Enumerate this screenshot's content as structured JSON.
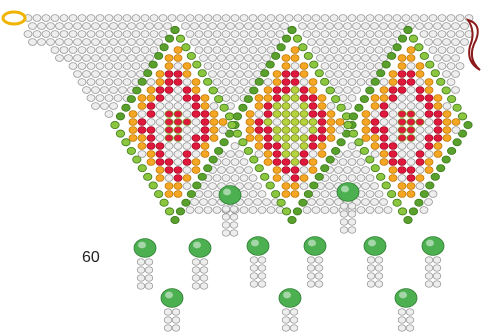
{
  "label": "60"
}
